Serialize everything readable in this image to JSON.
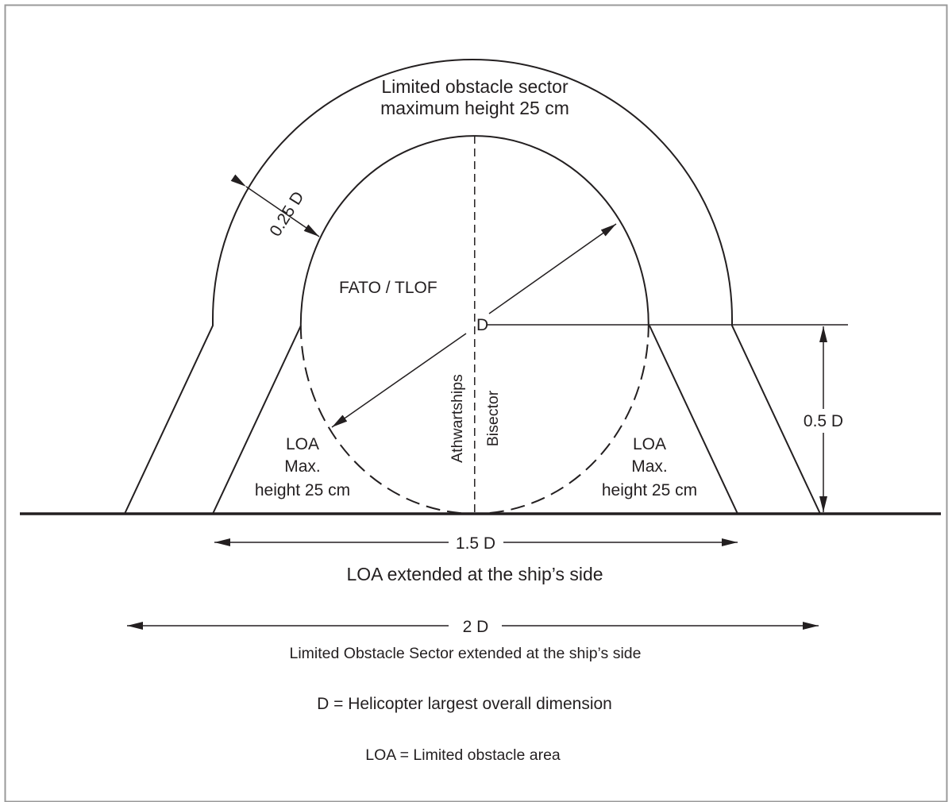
{
  "diagram": {
    "labels": {
      "sector_line1": "Limited obstacle sector",
      "sector_line2": "maximum height 25 cm",
      "ring_width": "0.25 D",
      "fato_tlof": "FATO / TLOF",
      "centre_d": "D",
      "athwartships": "Athwartships",
      "bisector": "Bisector",
      "loa_left_line1": "LOA",
      "loa_left_line2": "Max.",
      "loa_left_line3": "height 25 cm",
      "loa_right_line1": "LOA",
      "loa_right_line2": "Max.",
      "loa_right_line3": "height 25 cm",
      "half_d": "0.5 D",
      "one_half_d": "1.5 D",
      "loa_extended": "LOA extended at the ship’s side",
      "two_d": "2 D",
      "sector_extended": "Limited Obstacle Sector extended at the ship’s side",
      "d_definition": "D = Helicopter largest overall dimension",
      "loa_definition": "LOA = Limited obstacle area"
    }
  }
}
